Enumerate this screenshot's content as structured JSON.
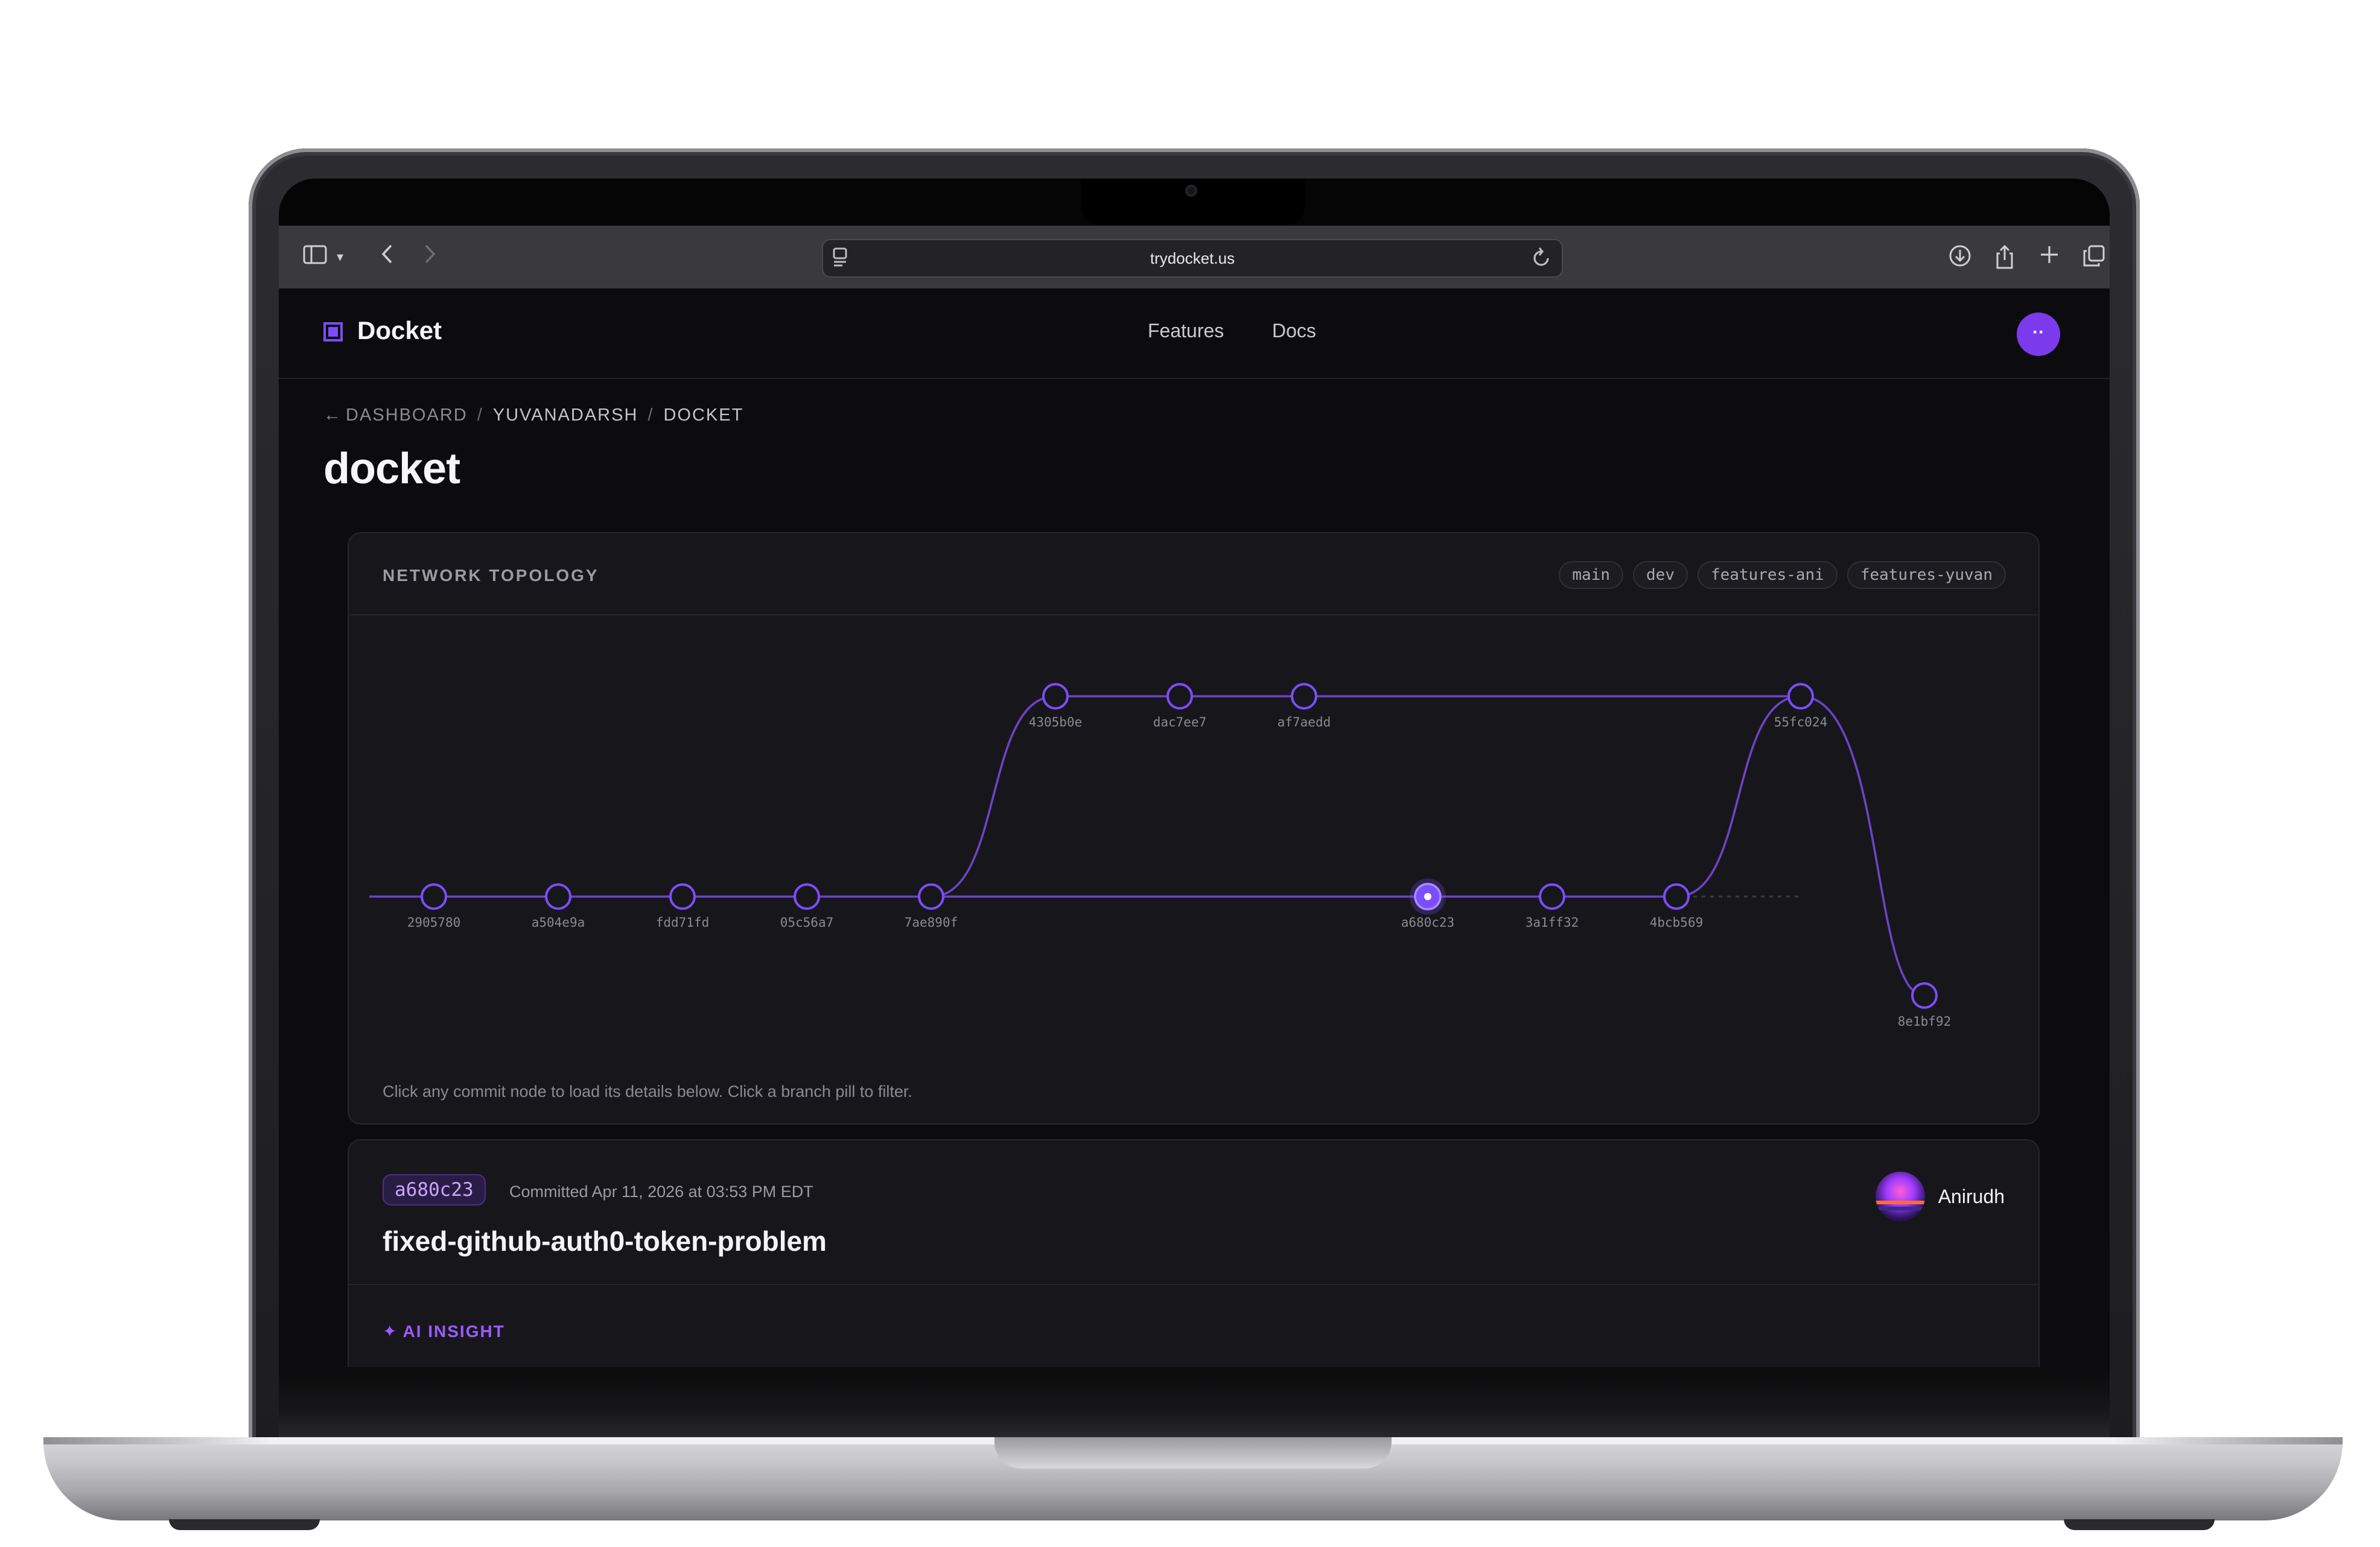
{
  "browser": {
    "url": "trydocket.us",
    "icons": [
      "sidebar-icon",
      "chevron-down-icon",
      "back-icon",
      "forward-icon",
      "page-icon",
      "reload-icon",
      "download-icon",
      "share-icon",
      "plus-icon",
      "tabs-icon"
    ]
  },
  "nav": {
    "logo": "Docket",
    "links": [
      "Features",
      "Docs"
    ],
    "avatar_label": "··"
  },
  "breadcrumb": {
    "back_arrow": "←",
    "items": [
      "DASHBOARD",
      "YUVANADARSH",
      "DOCKET"
    ],
    "separator": "/"
  },
  "page_title": "docket",
  "topology": {
    "title": "NETWORK TOPOLOGY",
    "branches": [
      "main",
      "dev",
      "features-ani",
      "features-yuvan"
    ],
    "hint": "Click any commit node to load its details below. Click a branch pill to filter.",
    "selected_commit": "a680c23",
    "main_commits": [
      "2905780",
      "a504e9a",
      "fdd71fd",
      "05c56a7",
      "7ae890f",
      "a680c23",
      "3a1ff32",
      "4bcb569"
    ],
    "upper_commits": [
      "4305b0e",
      "dac7ee7",
      "af7aedd",
      "55fc024"
    ],
    "lower_commits": [
      "8e1bf92"
    ],
    "colors": {
      "accent": "#7c4dff",
      "line": "#6b45c9",
      "node_fill": "#17171b"
    }
  },
  "commit": {
    "hash": "a680c23",
    "committed": "Committed Apr 11, 2026 at 03:53 PM EDT",
    "message": "fixed-github-auth0-token-problem",
    "author": "Anirudh",
    "insight_icon": "✦",
    "insight_label": "AI INSIGHT"
  }
}
